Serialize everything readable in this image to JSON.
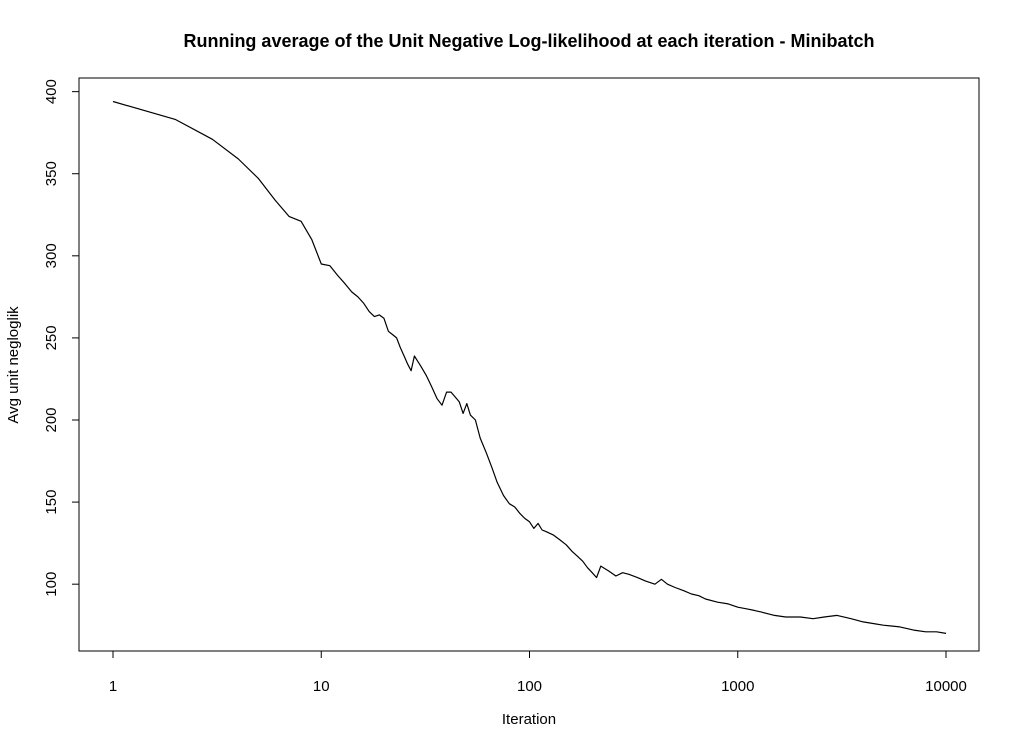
{
  "chart_data": {
    "type": "line",
    "title": "Running average of the Unit Negative Log-likelihood at each iteration - Minibatch",
    "xlabel": "Iteration",
    "ylabel": "Avg unit negloglik",
    "x_scale": "log",
    "xlim": [
      1,
      10000
    ],
    "ylim": [
      66,
      401
    ],
    "x_ticks": [
      1,
      10,
      100,
      1000,
      10000
    ],
    "x_tick_labels": [
      "1",
      "10",
      "100",
      "1000",
      "10000"
    ],
    "y_ticks": [
      100,
      150,
      200,
      250,
      300,
      350,
      400
    ],
    "y_tick_labels": [
      "100",
      "150",
      "200",
      "250",
      "300",
      "350",
      "400"
    ],
    "grid": false,
    "legend": "none",
    "line_color": "#000000",
    "series": [
      {
        "x": [
          1,
          2,
          3,
          4,
          5,
          6,
          7,
          8,
          9,
          10,
          11,
          12,
          13,
          14,
          15,
          16,
          17,
          18,
          19,
          20,
          21,
          22,
          23,
          24,
          25,
          26,
          27,
          28,
          29,
          30,
          32,
          34,
          36,
          38,
          40,
          42,
          44,
          46,
          48,
          50,
          52,
          55,
          58,
          62,
          66,
          70,
          75,
          80,
          85,
          90,
          95,
          100,
          105,
          110,
          115,
          120,
          130,
          140,
          150,
          160,
          170,
          180,
          190,
          200,
          210,
          220,
          240,
          260,
          280,
          300,
          330,
          360,
          400,
          430,
          460,
          500,
          550,
          600,
          650,
          700,
          800,
          900,
          1000,
          1100,
          1200,
          1300,
          1500,
          1700,
          2000,
          2300,
          2600,
          3000,
          3500,
          4000,
          4500,
          5000,
          6000,
          7000,
          8000,
          9000,
          10000
        ],
        "y": [
          394,
          383,
          371,
          359,
          347,
          334,
          324,
          321,
          310,
          295,
          294,
          288,
          283,
          278,
          275,
          271,
          266,
          263,
          264,
          262,
          254,
          252,
          250,
          244,
          239,
          234,
          230,
          239,
          236,
          233,
          227,
          220,
          213,
          209,
          217,
          217,
          214,
          211,
          204,
          210,
          203,
          200,
          189,
          180,
          171,
          162,
          154,
          149,
          147,
          143,
          140,
          138,
          134,
          137,
          133,
          132,
          130,
          127,
          124,
          120,
          117,
          114,
          110,
          107,
          104,
          111,
          108,
          105,
          107,
          106,
          104,
          102,
          100,
          103,
          100,
          98,
          96,
          94,
          93,
          91,
          89,
          88,
          86,
          85,
          84,
          83,
          81,
          80,
          80,
          79,
          80,
          81,
          79,
          77,
          76,
          75,
          74,
          72,
          71,
          71,
          70
        ]
      }
    ]
  }
}
